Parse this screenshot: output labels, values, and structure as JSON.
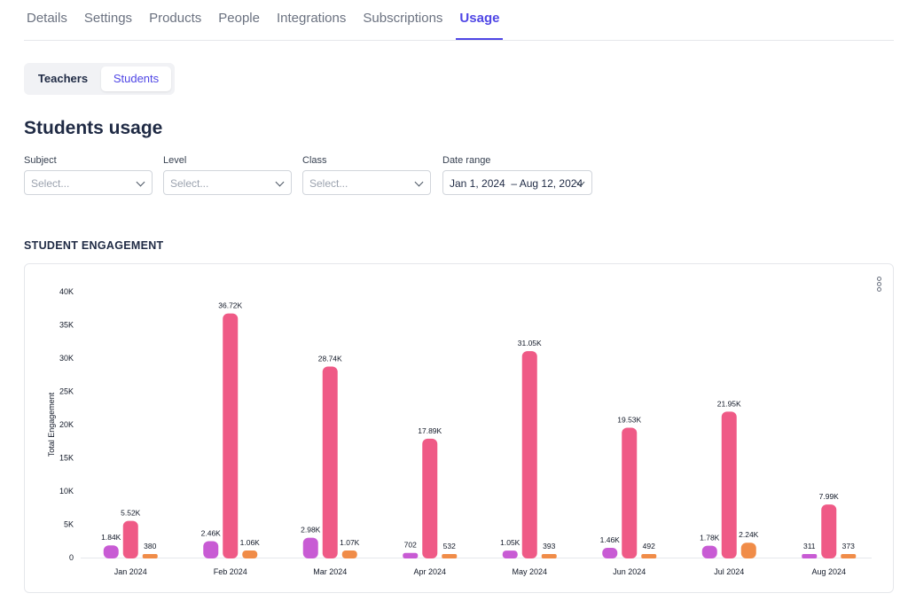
{
  "tabs": [
    {
      "label": "Details",
      "active": false
    },
    {
      "label": "Settings",
      "active": false
    },
    {
      "label": "Products",
      "active": false
    },
    {
      "label": "People",
      "active": false
    },
    {
      "label": "Integrations",
      "active": false
    },
    {
      "label": "Subscriptions",
      "active": false
    },
    {
      "label": "Usage",
      "active": true
    }
  ],
  "segment": {
    "teachers": "Teachers",
    "students": "Students",
    "selected": "Students"
  },
  "page_title": "Students usage",
  "filters": {
    "subject": {
      "label": "Subject",
      "placeholder": "Select..."
    },
    "level": {
      "label": "Level",
      "placeholder": "Select..."
    },
    "class": {
      "label": "Class",
      "placeholder": "Select..."
    },
    "date_range": {
      "label": "Date range",
      "value": "Jan 1, 2024  – Aug 12, 2024"
    }
  },
  "section_title": "STUDENT ENGAGEMENT",
  "colors": {
    "accent": "#4f46e5",
    "series1": "#c85bd4",
    "series2": "#ef5a86",
    "series3": "#f08c48"
  },
  "chart_data": {
    "type": "bar",
    "title": "",
    "xlabel": "",
    "ylabel": "Total Engagement",
    "ylim": [
      0,
      40000
    ],
    "yticks": [
      "0",
      "5K",
      "10K",
      "15K",
      "20K",
      "25K",
      "30K",
      "35K",
      "40K"
    ],
    "grid": false,
    "categories": [
      "Jan 2024",
      "Feb 2024",
      "Mar 2024",
      "Apr 2024",
      "May 2024",
      "Jun 2024",
      "Jul 2024",
      "Aug 2024"
    ],
    "series": [
      {
        "values": [
          1840,
          2460,
          2980,
          702,
          1050,
          1460,
          1780,
          311
        ],
        "labels": [
          "1.84K",
          "2.46K",
          "2.98K",
          "702",
          "1.05K",
          "1.46K",
          "1.78K",
          "311"
        ]
      },
      {
        "values": [
          5520,
          36720,
          28740,
          17890,
          31050,
          19530,
          21950,
          7990
        ],
        "labels": [
          "5.52K",
          "36.72K",
          "28.74K",
          "17.89K",
          "31.05K",
          "19.53K",
          "21.95K",
          "7.99K"
        ]
      },
      {
        "values": [
          380,
          1060,
          1070,
          532,
          393,
          492,
          2240,
          373
        ],
        "labels": [
          "380",
          "1.06K",
          "1.07K",
          "532",
          "393",
          "492",
          "2.24K",
          "373"
        ]
      }
    ]
  }
}
